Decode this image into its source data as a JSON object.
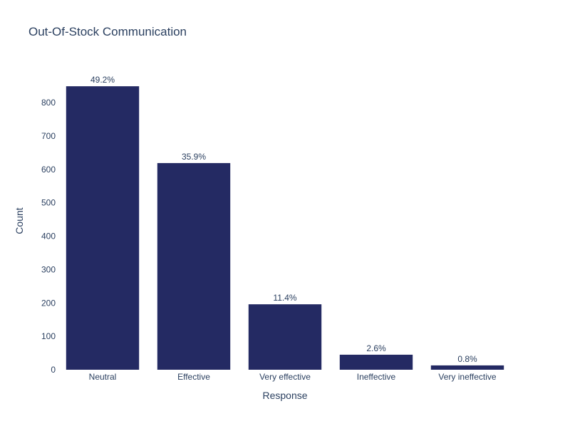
{
  "chart_data": {
    "type": "bar",
    "title": "Out-Of-Stock Communication",
    "xlabel": "Response",
    "ylabel": "Count",
    "categories": [
      "Neutral",
      "Effective",
      "Very effective",
      "Ineffective",
      "Very ineffective"
    ],
    "values": [
      849,
      619,
      196,
      45,
      13
    ],
    "labels": [
      "49.2%",
      "35.9%",
      "11.4%",
      "2.6%",
      "0.8%"
    ],
    "ylim": [
      0,
      894
    ],
    "yticks": [
      0,
      100,
      200,
      300,
      400,
      500,
      600,
      700,
      800
    ],
    "bar_color": "#242a63",
    "grid": false,
    "legend": "none"
  }
}
